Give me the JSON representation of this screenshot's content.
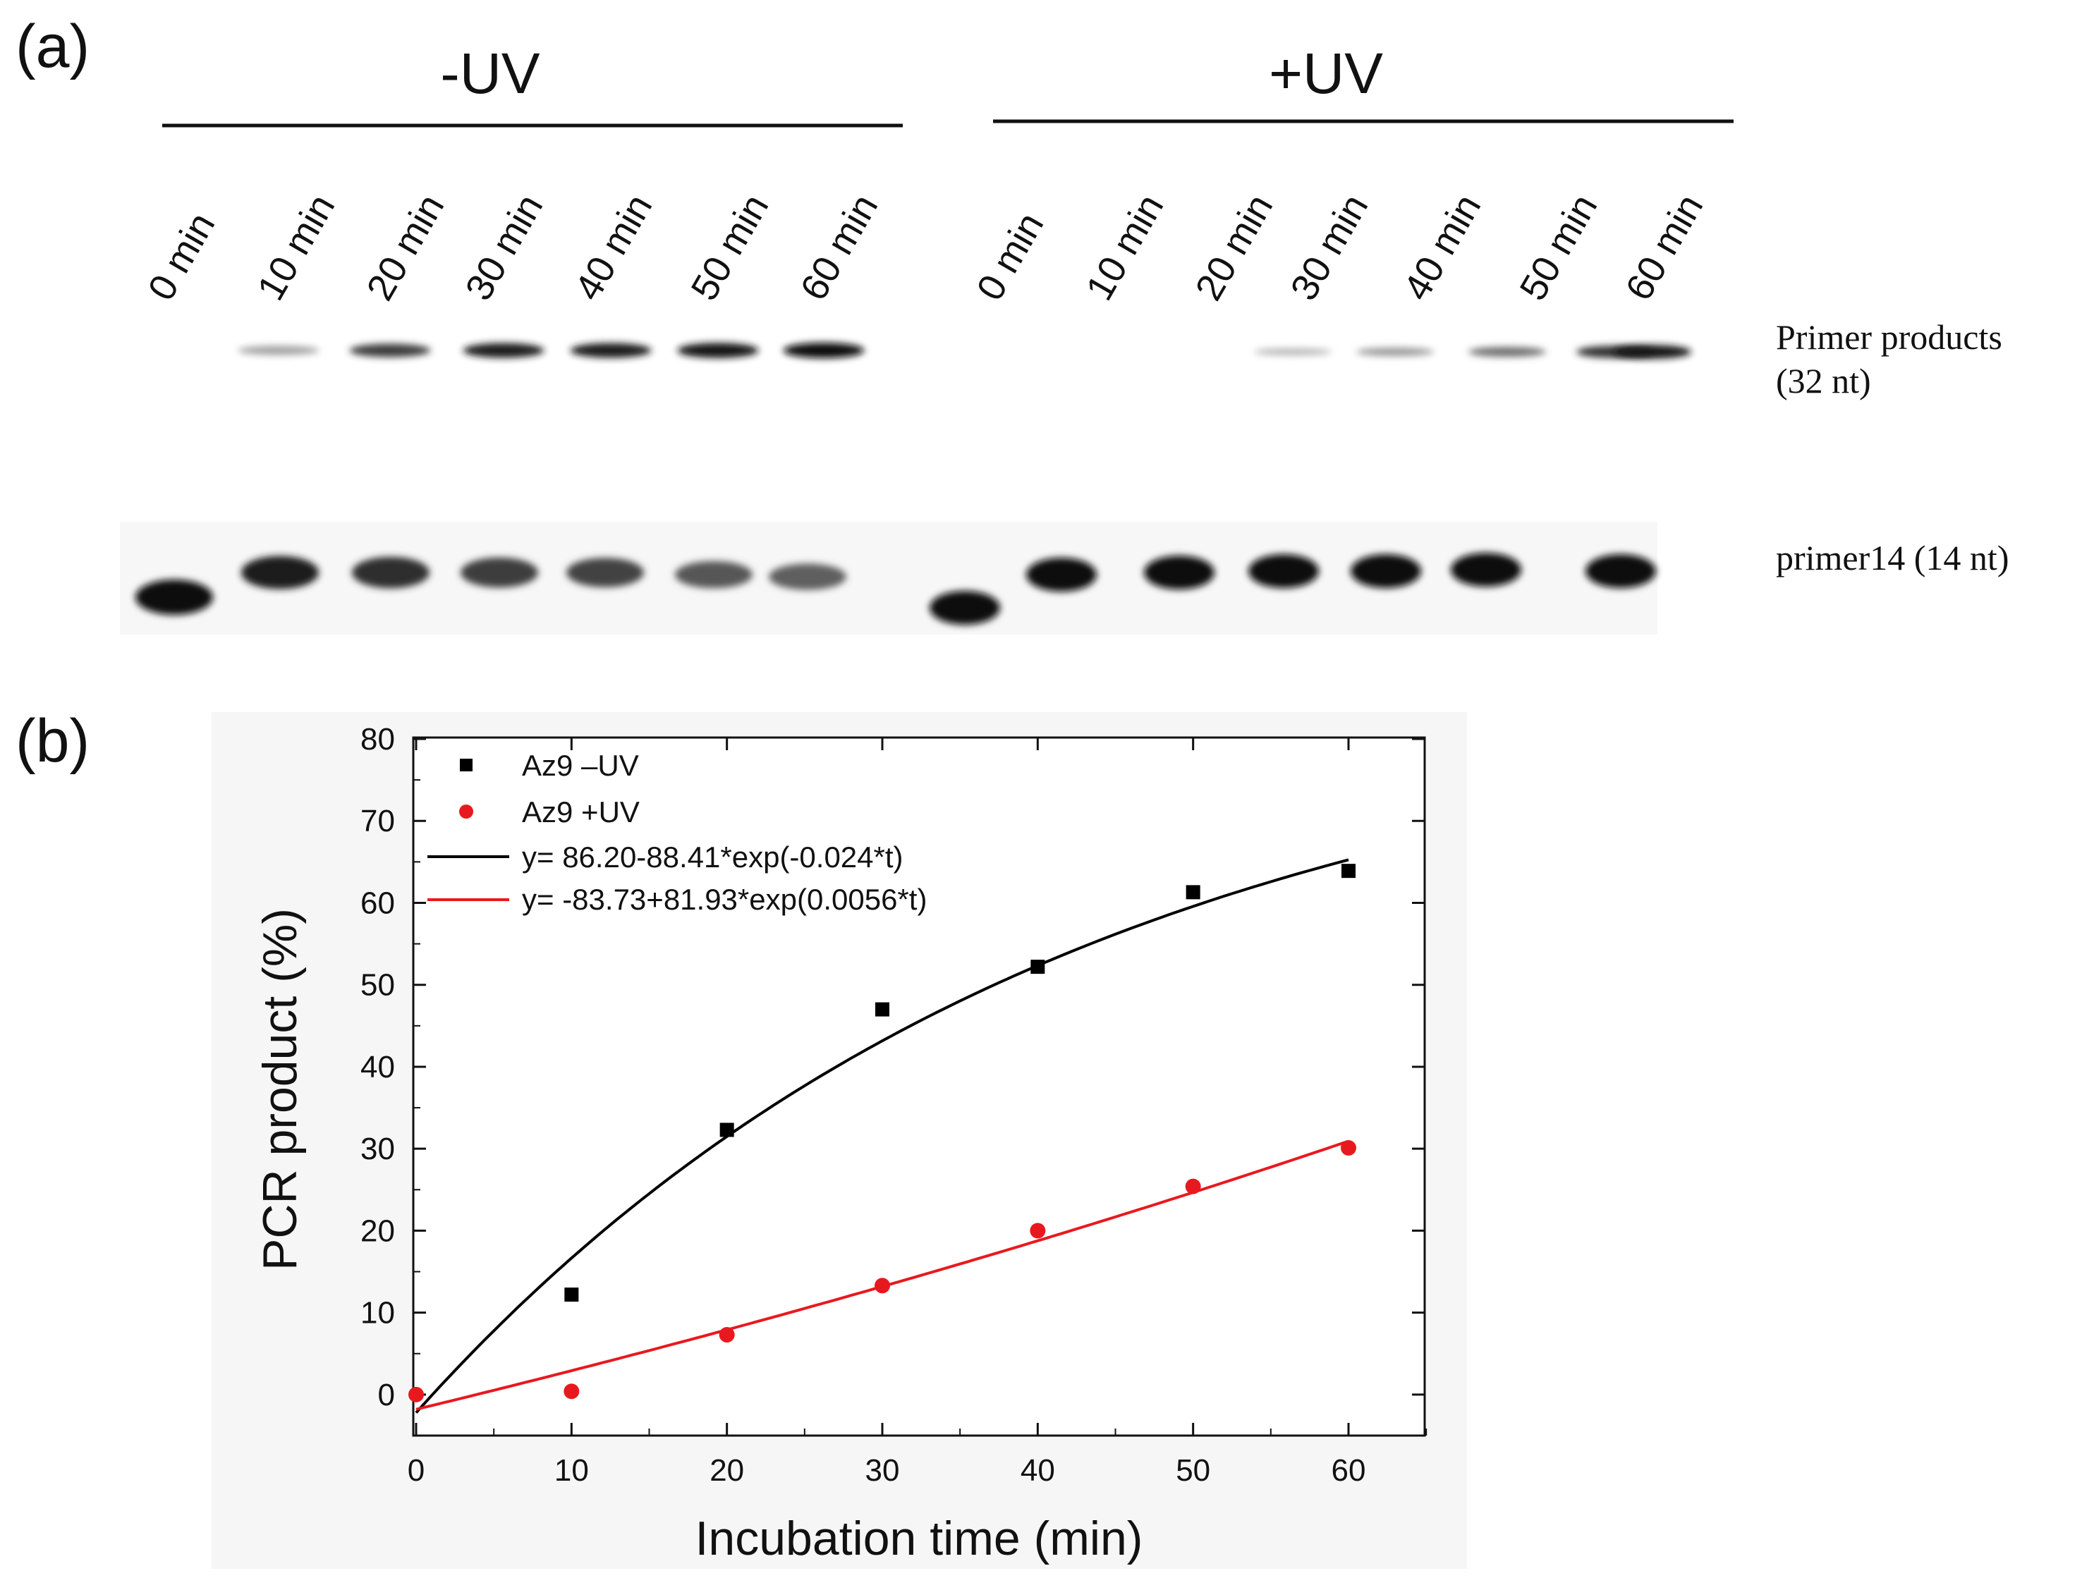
{
  "panel_a": {
    "label": "(a)",
    "group_minus": "-UV",
    "group_plus": "+UV",
    "lanes_minus": [
      "0 min",
      "10 min",
      "20 min",
      "30 min",
      "40 min",
      "50 min",
      "60 min"
    ],
    "lanes_plus": [
      "0 min",
      "10 min",
      "20 min",
      "30 min",
      "40 min",
      "50 min",
      "60 min"
    ],
    "band_label_product_line1": "Primer products",
    "band_label_product_line2": "(32 nt)",
    "band_label_primer": "primer14 (14 nt)",
    "product_band_intensity_minus": [
      0,
      0.25,
      0.75,
      0.9,
      0.9,
      0.95,
      1.0
    ],
    "product_band_intensity_plus": [
      0,
      0,
      0.15,
      0.3,
      0.5,
      0.8,
      0.95
    ],
    "primer_band_intensity_minus": [
      1.0,
      0.9,
      0.82,
      0.75,
      0.72,
      0.62,
      0.58
    ],
    "primer_band_intensity_plus": [
      1.0,
      1.0,
      1.0,
      1.0,
      1.0,
      1.0,
      1.0
    ]
  },
  "panel_b": {
    "label": "(b)",
    "legend": {
      "series1": "Az9 –UV",
      "series2": "Az9 +UV",
      "fit1": "y= 86.20-88.41*exp(-0.024*t)",
      "fit2": "y= -83.73+81.93*exp(0.0056*t)"
    }
  },
  "chart_data": {
    "type": "scatter",
    "xlabel": "Incubation time (min)",
    "ylabel": "PCR product (%)",
    "xlim": [
      0,
      65
    ],
    "ylim": [
      -5,
      80
    ],
    "xticks": [
      0,
      10,
      20,
      30,
      40,
      50,
      60
    ],
    "yticks": [
      0,
      10,
      20,
      30,
      40,
      50,
      60,
      70,
      80
    ],
    "grid": false,
    "legend_position": "top-left",
    "series": [
      {
        "name": "Az9 –UV",
        "marker": "square",
        "color": "#000000",
        "x": [
          10,
          20,
          30,
          40,
          50,
          60
        ],
        "y": [
          12.2,
          32.3,
          47.0,
          52.2,
          61.3,
          63.9
        ]
      },
      {
        "name": "Az9 +UV",
        "marker": "circle",
        "color": "#e8191e",
        "x": [
          0,
          10,
          20,
          30,
          40,
          50,
          60
        ],
        "y": [
          0,
          0.4,
          7.3,
          13.3,
          20.0,
          25.4,
          30.1
        ]
      }
    ],
    "fits": [
      {
        "name": "y= 86.20-88.41*exp(-0.024*t)",
        "color": "#000000",
        "a": 86.2,
        "b": -88.41,
        "k": -0.024,
        "x_range": [
          0,
          60
        ]
      },
      {
        "name": "y= -83.73+81.93*exp(0.0056*t)",
        "color": "#e8191e",
        "a": -83.73,
        "b": 81.93,
        "k": 0.0056,
        "x_range": [
          0,
          60
        ]
      }
    ]
  }
}
